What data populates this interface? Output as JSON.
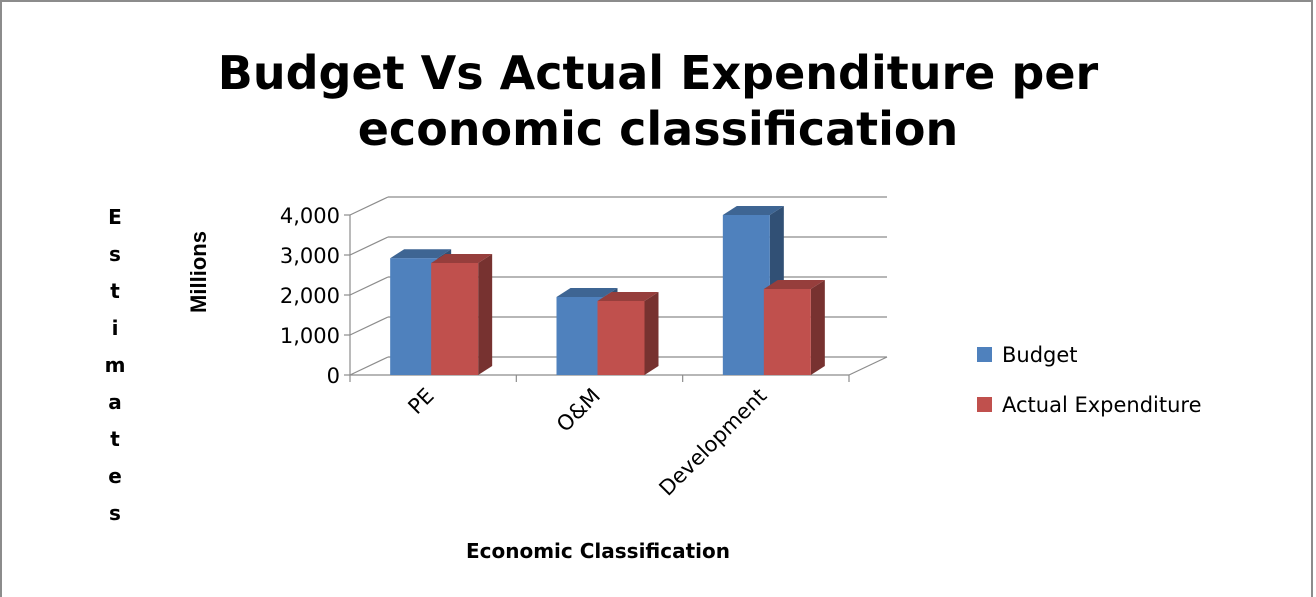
{
  "chart_data": {
    "type": "bar",
    "title_line1": "Budget Vs Actual Expenditure per",
    "title_line2": "economic classification",
    "categories": [
      "PE",
      "O&M",
      "Development"
    ],
    "series": [
      {
        "name": "Budget",
        "values": [
          2920,
          1950,
          4000
        ],
        "color": "#4f81bd"
      },
      {
        "name": "Actual Expenditure",
        "values": [
          2800,
          1850,
          2150
        ],
        "color": "#c0504d"
      }
    ],
    "xlabel": "Economic Classification",
    "ylabel": "Estimates",
    "unit_label": "Millions",
    "yticks": [
      "0",
      "1,000",
      "2,000",
      "3,000",
      "4,000"
    ],
    "ylim": [
      0,
      4000
    ],
    "grid": true,
    "legend_position": "right",
    "style": "3d-clustered-column"
  }
}
